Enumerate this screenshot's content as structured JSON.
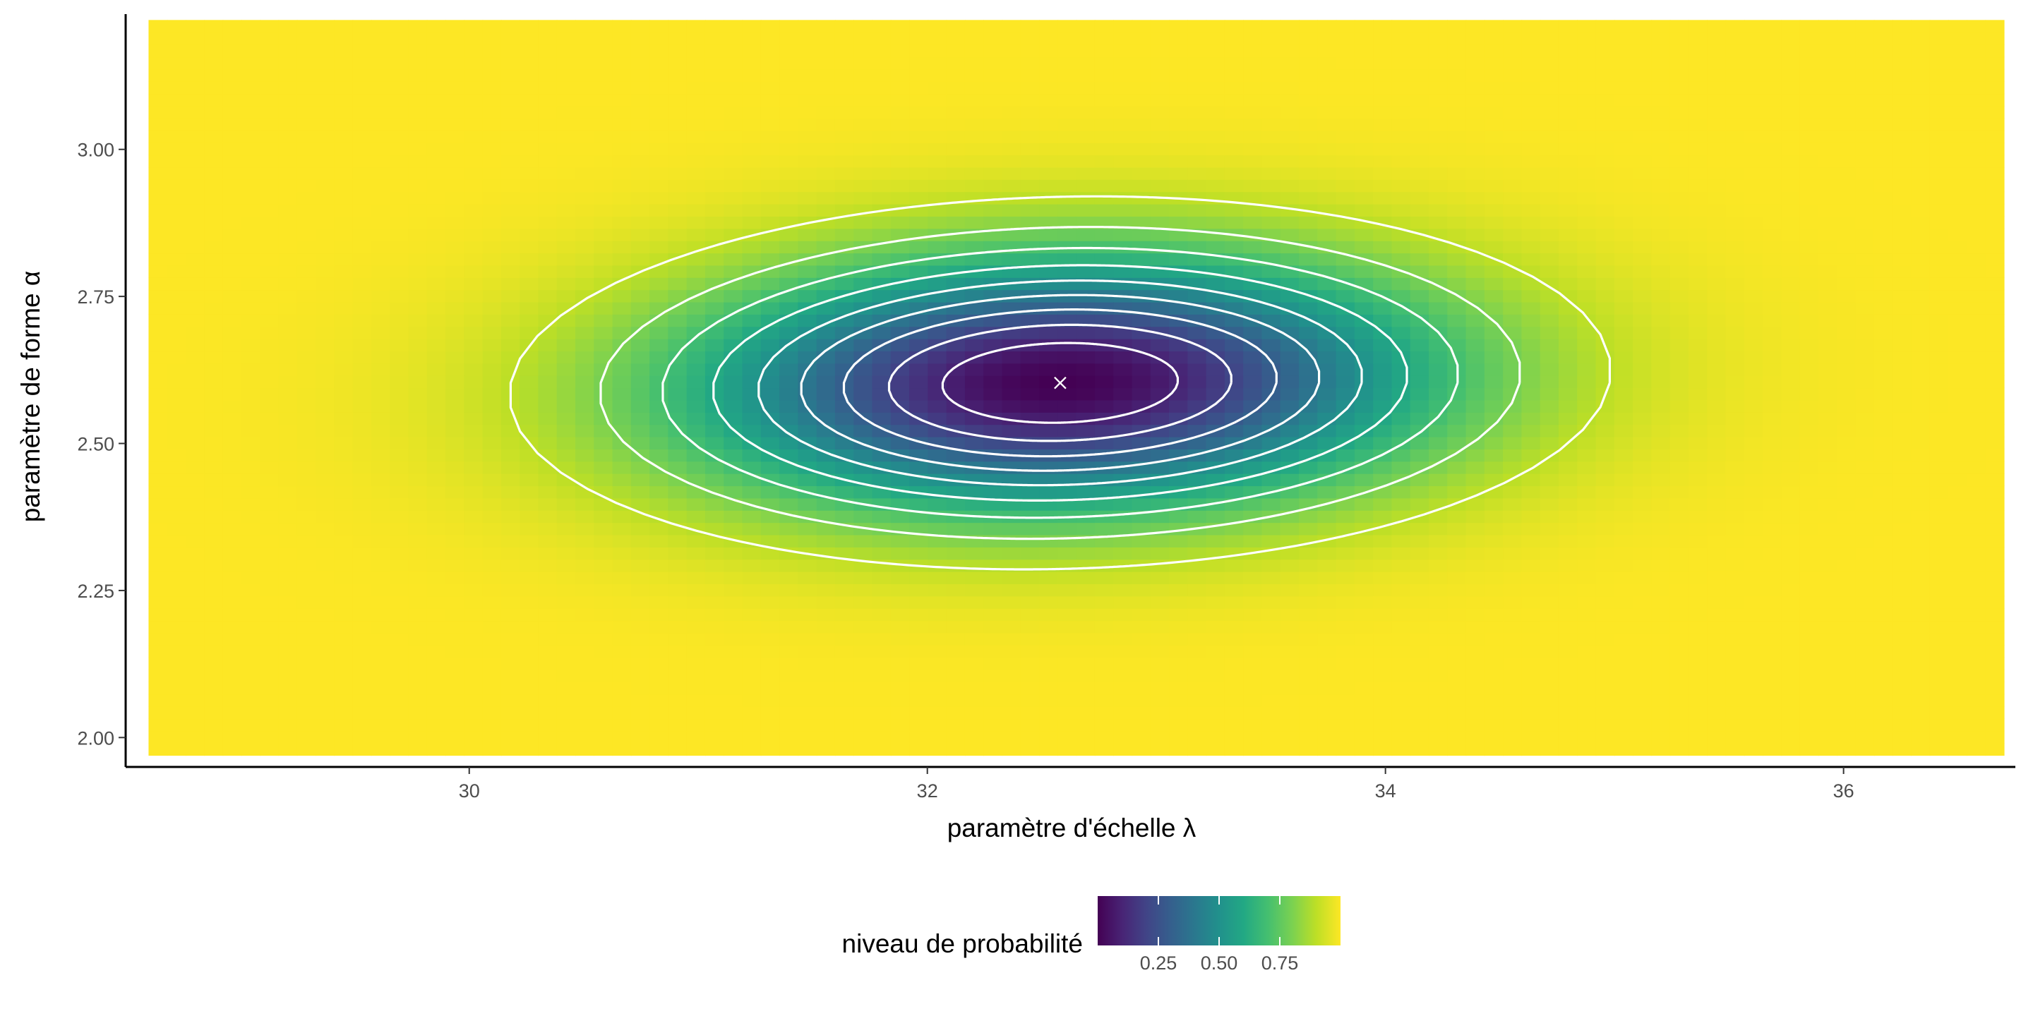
{
  "chart_data": {
    "type": "heatmap",
    "title": "",
    "xlabel": "paramètre d'échelle λ",
    "ylabel": "paramètre de forme α",
    "xlim": [
      28.5,
      36.75
    ],
    "ylim": [
      1.95,
      3.23
    ],
    "x_ticks": [
      30,
      32,
      34,
      36
    ],
    "x_tick_labels": [
      "30",
      "32",
      "34",
      "36"
    ],
    "y_ticks": [
      2.0,
      2.25,
      2.5,
      2.75,
      3.0
    ],
    "y_tick_labels": [
      "2.00",
      "2.25",
      "2.50",
      "2.75",
      "3.00"
    ],
    "fill": {
      "variable": "niveau de probabilité",
      "range": [
        0,
        1
      ],
      "colormap": "viridis",
      "grid_x": [
        28.6,
        36.7
      ],
      "grid_y": [
        1.97,
        3.22
      ]
    },
    "mle": {
      "x": 32.58,
      "y": 2.603,
      "marker": "×"
    },
    "contour_levels": [
      0.1,
      0.2,
      0.3,
      0.4,
      0.5,
      0.6,
      0.7,
      0.8,
      0.9
    ],
    "contour_color": "#ffffff",
    "legend": {
      "title": "niveau de probabilité",
      "position": "bottom",
      "ticks": [
        0.25,
        0.5,
        0.75
      ],
      "tick_labels": [
        "0.25",
        "0.50",
        "0.75"
      ]
    },
    "grid": false
  }
}
